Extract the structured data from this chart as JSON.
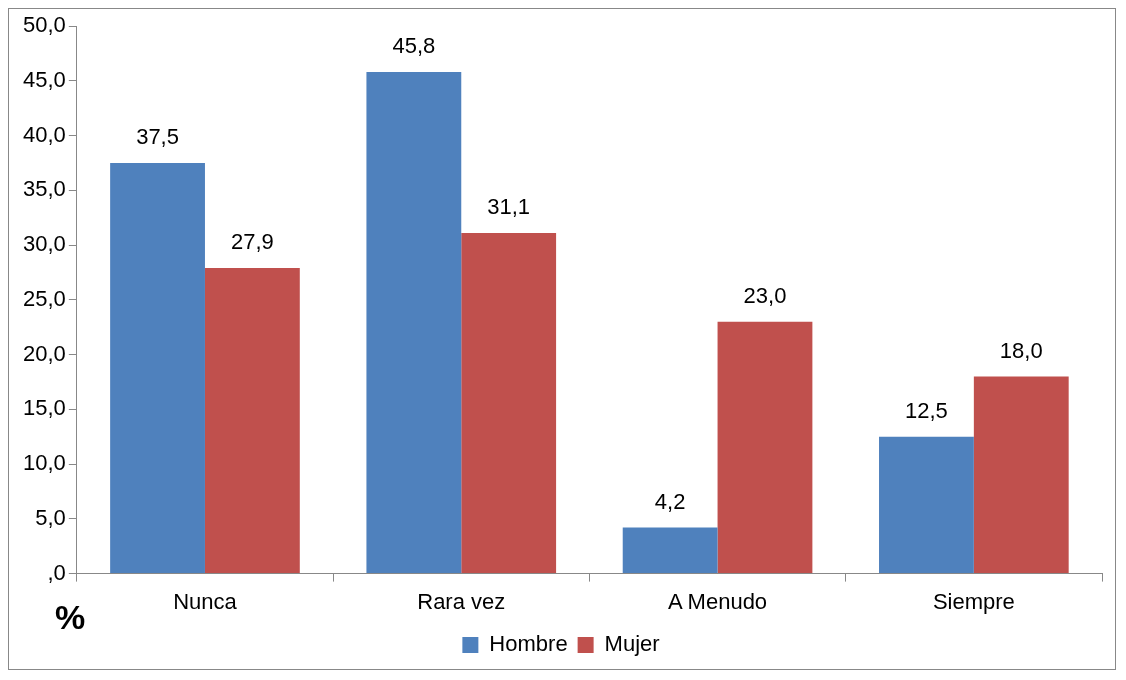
{
  "chart_data": {
    "type": "bar",
    "categories": [
      "Nunca",
      "Rara vez",
      "A Menudo",
      "Siempre"
    ],
    "series": [
      {
        "name": "Hombre",
        "color": "#4f81bd",
        "values": [
          37.5,
          45.8,
          4.2,
          12.5
        ],
        "value_labels": [
          "37,5",
          "45,8",
          "4,2",
          "12,5"
        ]
      },
      {
        "name": "Mujer",
        "color": "#c0504d",
        "values": [
          27.9,
          31.1,
          23.0,
          18.0
        ],
        "value_labels": [
          "27,9",
          "31,1",
          "23,0",
          "18,0"
        ]
      }
    ],
    "ylabel": "%",
    "ylim": [
      0,
      50
    ],
    "yticks": [
      {
        "value": 0,
        "label": ",0"
      },
      {
        "value": 5,
        "label": "5,0"
      },
      {
        "value": 10,
        "label": "10,0"
      },
      {
        "value": 15,
        "label": "15,0"
      },
      {
        "value": 20,
        "label": "20,0"
      },
      {
        "value": 25,
        "label": "25,0"
      },
      {
        "value": 30,
        "label": "30,0"
      },
      {
        "value": 35,
        "label": "35,0"
      },
      {
        "value": 40,
        "label": "40,0"
      },
      {
        "value": 45,
        "label": "45,0"
      },
      {
        "value": 50,
        "label": "50,0"
      }
    ],
    "grid": false,
    "legend": "bottom"
  }
}
